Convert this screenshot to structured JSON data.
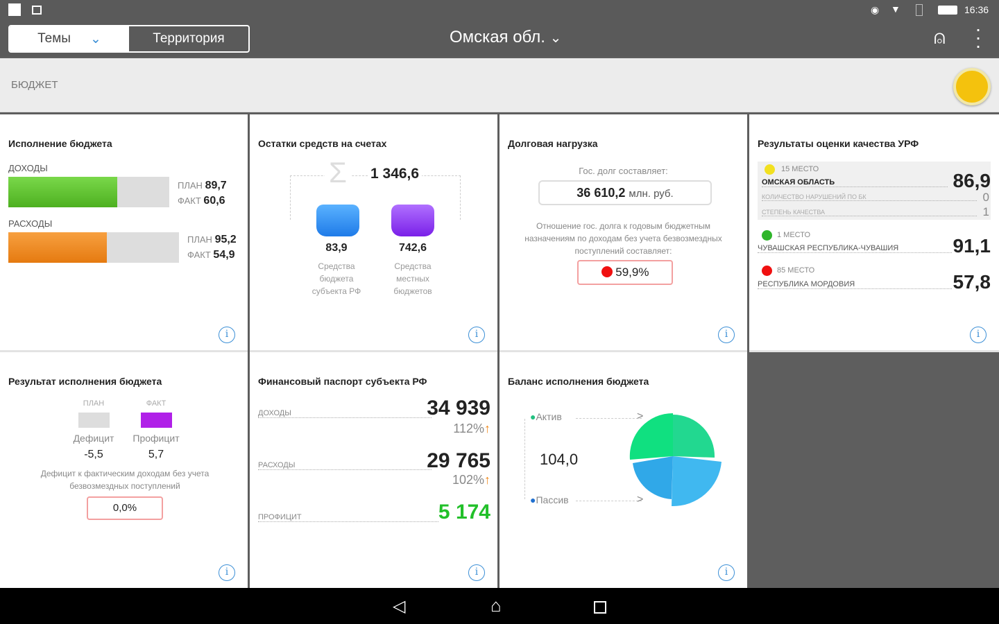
{
  "status_bar": {
    "time": "16:36",
    "battery": "Battery"
  },
  "app_bar": {
    "tabs": [
      {
        "label": "Темы"
      },
      {
        "label": "Территория"
      }
    ],
    "region": "Омская обл."
  },
  "section": {
    "title": "БЮДЖЕТ"
  },
  "colors": {
    "green": "#5cc02c",
    "orange": "#f08a1c",
    "blue": "#2f8ff0",
    "purple": "#8a3ff0",
    "red": "#f01010",
    "yellow": "#f2e020",
    "accent_green": "#22c02a"
  },
  "cards": {
    "execution": {
      "title": "Исполнение бюджета",
      "income_label": "ДОХОДЫ",
      "income_plan_label": "ПЛАН",
      "income_plan": "89,7",
      "income_fact_label": "ФАКТ",
      "income_fact": "60,6",
      "income_fill_pct": 67.6,
      "expense_label": "РАСХОДЫ",
      "expense_plan_label": "ПЛАН",
      "expense_plan": "95,2",
      "expense_fact_label": "ФАКТ",
      "expense_fact": "54,9",
      "expense_fill_pct": 57.7
    },
    "balances": {
      "title": "Остатки средств на счетах",
      "total": "1 346,6",
      "left_value": "83,9",
      "left_label": "Средства бюджета субъекта РФ",
      "right_value": "742,6",
      "right_label": "Средства местных бюджетов"
    },
    "debt": {
      "title": "Долговая нагрузка",
      "debt_label": "Гос. долг составляет:",
      "debt_value": "36 610,2",
      "debt_unit": "млн. руб.",
      "ratio_label": "Отношение гос. долга к годовым бюджетным назначениям по доходам без учета безвозмездных поступлений составляет:",
      "ratio_value": "59,9%"
    },
    "quality": {
      "title": "Результаты оценки качества УРФ",
      "items": [
        {
          "place": "15 МЕСТО",
          "name": "ОМСКАЯ ОБЛАСТЬ",
          "score": "86,9",
          "color": "#f2e020",
          "details": [
            {
              "label": "КОЛИЧЕСТВО НАРУШЕНИЙ ПО БК",
              "value": "0"
            },
            {
              "label": "СТЕПЕНЬ КАЧЕСТВА",
              "value": "1"
            }
          ]
        },
        {
          "place": "1 МЕСТО",
          "name": "ЧУВАШСКАЯ РЕСПУБЛИКА-ЧУВАШИЯ",
          "score": "91,1",
          "color": "#2fb52a"
        },
        {
          "place": "85 МЕСТО",
          "name": "РЕСПУБЛИКА МОРДОВИЯ",
          "score": "57,8",
          "color": "#f01010"
        }
      ]
    },
    "result": {
      "title": "Результат исполнения бюджета",
      "plan_label": "ПЛАН",
      "fact_label": "ФАКТ",
      "deficit_label": "Дефицит",
      "deficit_value": "-5,5",
      "surplus_label": "Профицит",
      "surplus_value": "5,7",
      "note": "Дефицит к фактическим доходам без учета безвозмездных поступлений",
      "note_value": "0,0%"
    },
    "passport": {
      "title": "Финансовый паспорт субъекта РФ",
      "rows": [
        {
          "label": "ДОХОДЫ",
          "value": "34 939",
          "pct": "112%"
        },
        {
          "label": "РАСХОДЫ",
          "value": "29 765",
          "pct": "102%"
        },
        {
          "label": "ПРОФИЦИТ",
          "value": "5 174"
        }
      ]
    },
    "balance": {
      "title": "Баланс исполнения бюджета",
      "active_label": "Актив",
      "passive_label": "Пассив",
      "value": "104,0"
    }
  }
}
